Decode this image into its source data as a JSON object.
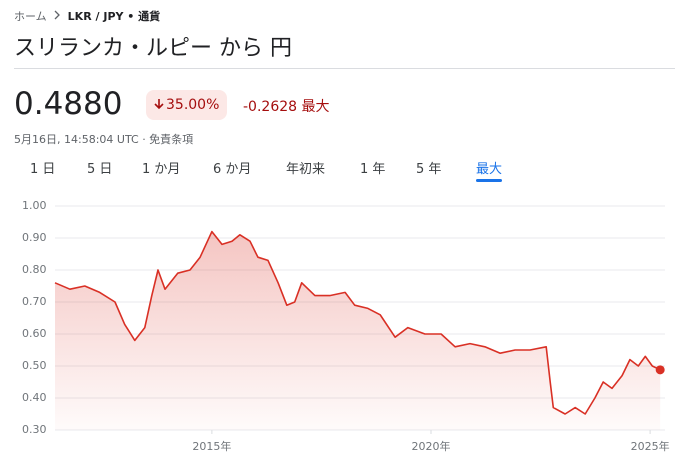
{
  "breadcrumb": {
    "home": "ホーム",
    "current": "LKR / JPY • 通貨"
  },
  "title": "スリランカ・ルピー から 円",
  "quote": {
    "price": "0.4880",
    "change_percent": "35.00%",
    "change": "-0.2628",
    "period": "最大",
    "timestamp": "5月16日, 14:58:04 UTC · 免責条項"
  },
  "tabs": [
    "1 日",
    "5 日",
    "1 か月",
    "6 か月",
    "年初来",
    "1 年",
    "5 年",
    "最大"
  ],
  "selected_tab": 7,
  "chart_data": {
    "type": "area",
    "color": "#d93025",
    "x": [
      2011.42,
      2011.76,
      2012.1,
      2012.44,
      2012.79,
      2013.01,
      2013.24,
      2013.47,
      2013.63,
      2013.77,
      2013.93,
      2014.22,
      2014.5,
      2014.73,
      2015.0,
      2015.23,
      2015.46,
      2015.64,
      2015.87,
      2016.05,
      2016.28,
      2016.51,
      2016.71,
      2016.89,
      2017.05,
      2017.35,
      2017.69,
      2018.04,
      2018.26,
      2018.56,
      2018.84,
      2019.18,
      2019.47,
      2019.86,
      2020.23,
      2020.55,
      2020.89,
      2021.23,
      2021.58,
      2021.92,
      2022.26,
      2022.63,
      2022.72,
      2022.79,
      2023.06,
      2023.29,
      2023.52,
      2023.74,
      2023.93,
      2024.13,
      2024.36,
      2024.54,
      2024.73,
      2024.89,
      2025.05,
      2025.23
    ],
    "values": [
      0.76,
      0.74,
      0.75,
      0.73,
      0.7,
      0.63,
      0.58,
      0.62,
      0.72,
      0.8,
      0.74,
      0.79,
      0.8,
      0.84,
      0.92,
      0.88,
      0.89,
      0.91,
      0.89,
      0.84,
      0.83,
      0.76,
      0.69,
      0.7,
      0.76,
      0.72,
      0.72,
      0.73,
      0.69,
      0.68,
      0.66,
      0.59,
      0.62,
      0.6,
      0.6,
      0.56,
      0.57,
      0.56,
      0.54,
      0.55,
      0.55,
      0.56,
      0.45,
      0.37,
      0.35,
      0.37,
      0.35,
      0.4,
      0.45,
      0.43,
      0.47,
      0.52,
      0.5,
      0.53,
      0.5,
      0.488
    ],
    "xlim": [
      2011.42,
      2025.34
    ],
    "xticks": [
      {
        "value": 2015,
        "label": "2015年"
      },
      {
        "value": 2020,
        "label": "2020年"
      },
      {
        "value": 2025,
        "label": "2025年"
      }
    ],
    "ylim": [
      0.3,
      1.0
    ],
    "yticks": [
      {
        "value": 0.3,
        "label": "0.30"
      },
      {
        "value": 0.4,
        "label": "0.40"
      },
      {
        "value": 0.5,
        "label": "0.50"
      },
      {
        "value": 0.6,
        "label": "0.60"
      },
      {
        "value": 0.7,
        "label": "0.70"
      },
      {
        "value": 0.8,
        "label": "0.80"
      },
      {
        "value": 0.9,
        "label": "0.90"
      },
      {
        "value": 1.0,
        "label": "1.00"
      }
    ],
    "grid": true
  }
}
